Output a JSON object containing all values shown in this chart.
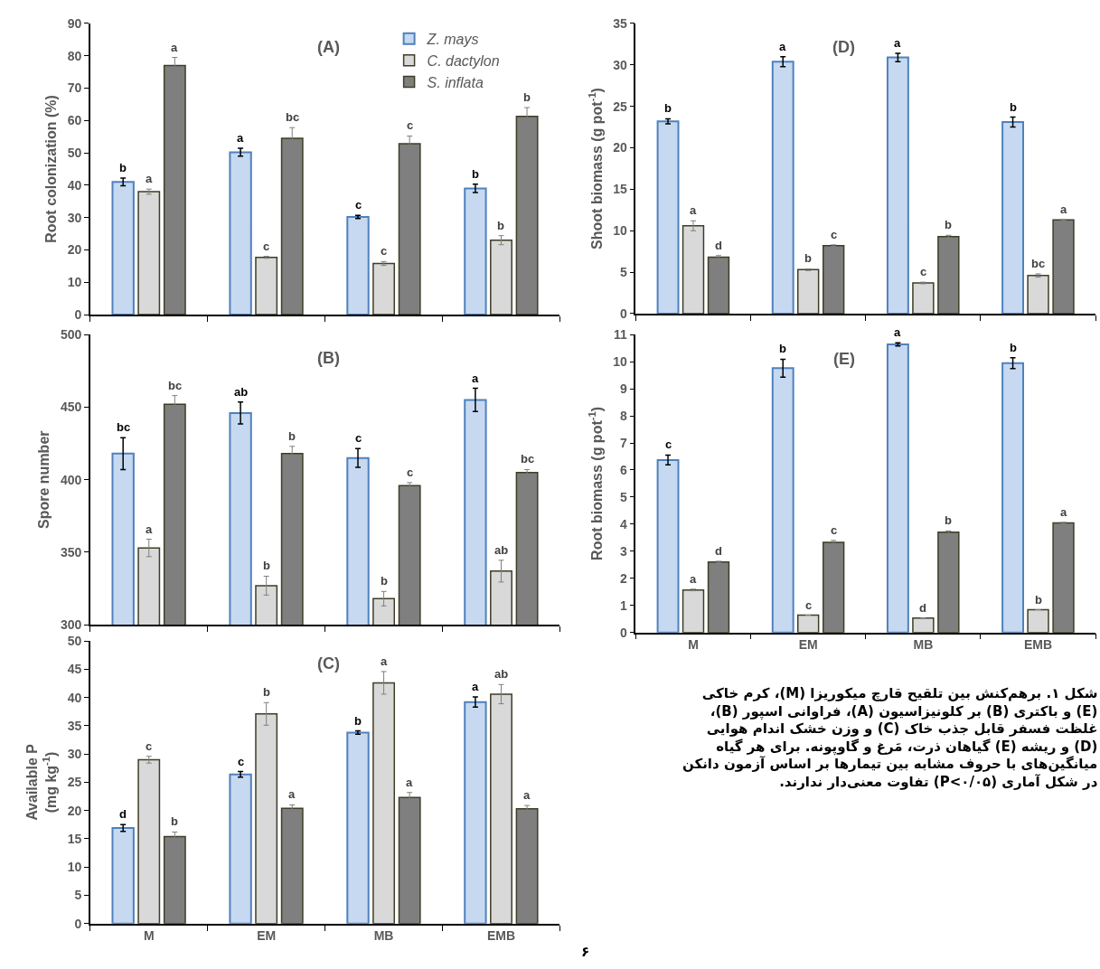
{
  "chart_data": [
    {
      "type": "bar",
      "categories": [
        null,
        null,
        null,
        null
      ],
      "ylabel": "Root colonization (%)",
      "annotations": [
        "(A)"
      ],
      "ylim": [
        0,
        90
      ],
      "yticks": [
        0,
        10,
        20,
        30,
        40,
        50,
        60,
        70,
        80,
        90
      ],
      "legend": "top right",
      "tick_labels": "y",
      "series": [
        {
          "name": "Z. mays",
          "color": "#c6d9f1",
          "values": [
            41,
            50.2,
            30.2,
            39
          ],
          "errors": [
            1.2,
            1.2,
            0.5,
            1.3
          ],
          "value_labels": [
            "b",
            "a",
            "c",
            "b"
          ]
        },
        {
          "name": "C. dactylon",
          "color": "#d9d9d9",
          "values": [
            38,
            17.7,
            15.8,
            23
          ],
          "errors": [
            0.8,
            0.3,
            0.6,
            1.4
          ],
          "value_labels": [
            "a",
            "c",
            "c",
            "b"
          ]
        },
        {
          "name": "S. inflata",
          "color": "#7f7f7f",
          "values": [
            77,
            54.5,
            52.8,
            61.3
          ],
          "errors": [
            2.5,
            3.3,
            2.4,
            2.7
          ],
          "value_labels": [
            "a",
            "bc",
            "c",
            "b"
          ]
        }
      ]
    },
    {
      "type": "bar",
      "categories": [
        null,
        null,
        null,
        null
      ],
      "ylabel": "Spore number",
      "annotations": [
        "(B)"
      ],
      "ylim": [
        300,
        500
      ],
      "yticks": [
        300,
        350,
        400,
        450,
        500
      ],
      "tick_labels": "y",
      "series": [
        {
          "color": "#c6d9f1",
          "values": [
            418,
            446,
            415,
            455
          ],
          "errors": [
            11,
            7.5,
            6.5,
            8
          ],
          "value_labels": [
            "bc",
            "ab",
            "c",
            "a"
          ]
        },
        {
          "color": "#d9d9d9",
          "values": [
            353,
            327,
            318,
            337
          ],
          "errors": [
            6,
            6.5,
            5,
            7.5
          ],
          "value_labels": [
            "a",
            "b",
            "b",
            "ab"
          ]
        },
        {
          "color": "#7f7f7f",
          "values": [
            452,
            418,
            396,
            405
          ],
          "errors": [
            6,
            5,
            2,
            2
          ],
          "value_labels": [
            "bc",
            "b",
            "c",
            "bc"
          ]
        }
      ]
    },
    {
      "type": "bar",
      "categories": [
        "M",
        "EM",
        "MB",
        "EMB"
      ],
      "ylabel": "Available P\n(mg kg$^{-1}$)",
      "annotations": [
        "(C)"
      ],
      "ylim": [
        0,
        50
      ],
      "yticks": [
        0,
        5,
        10,
        15,
        20,
        25,
        30,
        35,
        40,
        45,
        50
      ],
      "series": [
        {
          "color": "#c6d9f1",
          "values": [
            16.9,
            26.4,
            33.8,
            39.2
          ],
          "errors": [
            0.6,
            0.5,
            0.3,
            0.9
          ],
          "value_labels": [
            "d",
            "c",
            "b",
            "a"
          ]
        },
        {
          "color": "#d9d9d9",
          "values": [
            29,
            37.1,
            42.6,
            40.6
          ],
          "errors": [
            0.6,
            2,
            2,
            1.7
          ],
          "value_labels": [
            "c",
            "b",
            "a",
            "ab"
          ]
        },
        {
          "color": "#7f7f7f",
          "values": [
            15.4,
            20.4,
            22.3,
            20.3
          ],
          "errors": [
            0.8,
            0.6,
            0.9,
            0.6
          ],
          "value_labels": [
            "b",
            "a",
            "a",
            "a"
          ]
        }
      ]
    },
    {
      "type": "bar",
      "categories": [
        null,
        null,
        null,
        null
      ],
      "ylabel": "Shoot biomass (g pot$^{-1}$)",
      "annotations": [
        "(D)"
      ],
      "ylim": [
        0,
        35
      ],
      "yticks": [
        0,
        5,
        10,
        15,
        20,
        25,
        30,
        35
      ],
      "tick_labels": "y",
      "series": [
        {
          "color": "#c6d9f1",
          "values": [
            23.2,
            30.4,
            30.9,
            23.1
          ],
          "errors": [
            0.3,
            0.6,
            0.5,
            0.6
          ],
          "value_labels": [
            "b",
            "a",
            "a",
            "b"
          ]
        },
        {
          "color": "#d9d9d9",
          "values": [
            10.6,
            5.3,
            3.7,
            4.6
          ],
          "errors": [
            0.6,
            0.1,
            0.1,
            0.2
          ],
          "value_labels": [
            "a",
            "b",
            "c",
            "bc"
          ]
        },
        {
          "color": "#7f7f7f",
          "values": [
            6.8,
            8.2,
            9.3,
            11.3
          ],
          "errors": [
            0.2,
            0.1,
            0.15,
            0.05
          ],
          "value_labels": [
            "d",
            "c",
            "b",
            "a"
          ]
        }
      ]
    },
    {
      "type": "bar",
      "categories": [
        "M",
        "EM",
        "MB",
        "EMB"
      ],
      "ylabel": "Root biomass (g pot$^{-1}$)",
      "annotations": [
        "(E)"
      ],
      "ylim": [
        0,
        11
      ],
      "yticks": [
        0,
        1,
        2,
        3,
        4,
        5,
        6,
        7,
        8,
        9,
        10,
        11
      ],
      "series": [
        {
          "color": "#c6d9f1",
          "values": [
            6.37,
            9.76,
            10.64,
            9.95
          ],
          "errors": [
            0.18,
            0.33,
            0.06,
            0.2
          ],
          "value_labels": [
            "c",
            "b",
            "a",
            "b"
          ]
        },
        {
          "color": "#d9d9d9",
          "values": [
            1.57,
            0.64,
            0.53,
            0.84
          ],
          "errors": [
            0.03,
            null,
            null,
            null
          ],
          "value_labels": [
            "a",
            "c",
            "d",
            "b"
          ]
        },
        {
          "color": "#7f7f7f",
          "values": [
            2.6,
            3.33,
            3.7,
            4.05
          ],
          "errors": [
            0.03,
            0.07,
            0.05,
            0.02
          ],
          "value_labels": [
            "d",
            "c",
            "b",
            "a"
          ]
        }
      ]
    },
    {
      "type": "other",
      "annotations": [
        "شکل ۱. برهم‌کنش بین تلقیح قارچ میکوریزا (M)، کرم خاکی\n(E) و باکتری (B) بر کلونیزاسیون (A)، فراوانی اسپور (B)،\nغلظت فسفر قابل جذب خاک (C) و وزن خشک اندام هوایی\n(D) و ریشه (E) گیاهان ذرت، مَرغ و گاوپونه. برای هر گیاه\nمیانگین‌های با حروف مشابه بین تیمارها بر اساس آزمون دانکن\nدر شکل آماری (P<۰/۰۵) تفاوت معنی‌دار ندارند.",
        "۶"
      ]
    }
  ]
}
